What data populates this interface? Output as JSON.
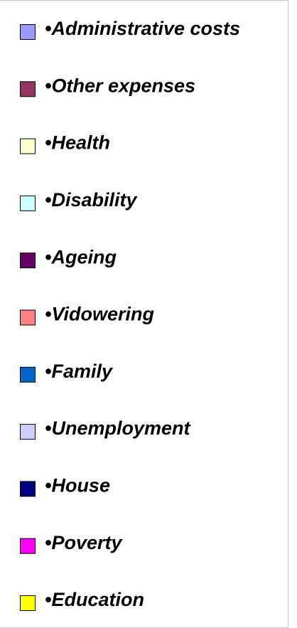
{
  "legend": {
    "items": [
      {
        "label": "•Administrative costs",
        "color": "#9999ff"
      },
      {
        "label": "•Other expenses",
        "color": "#993366"
      },
      {
        "label": "•Health",
        "color": "#ffffcc"
      },
      {
        "label": "•Disability",
        "color": "#ccffff"
      },
      {
        "label": "•Ageing",
        "color": "#660066"
      },
      {
        "label": "•Vidowering",
        "color": "#ff8080"
      },
      {
        "label": "•Family",
        "color": "#0066cc"
      },
      {
        "label": "•Unemployment",
        "color": "#ccccff"
      },
      {
        "label": "•House",
        "color": "#000080"
      },
      {
        "label": "•Poverty",
        "color": "#ff00ff"
      },
      {
        "label": "•Education",
        "color": "#ffff00"
      }
    ]
  }
}
